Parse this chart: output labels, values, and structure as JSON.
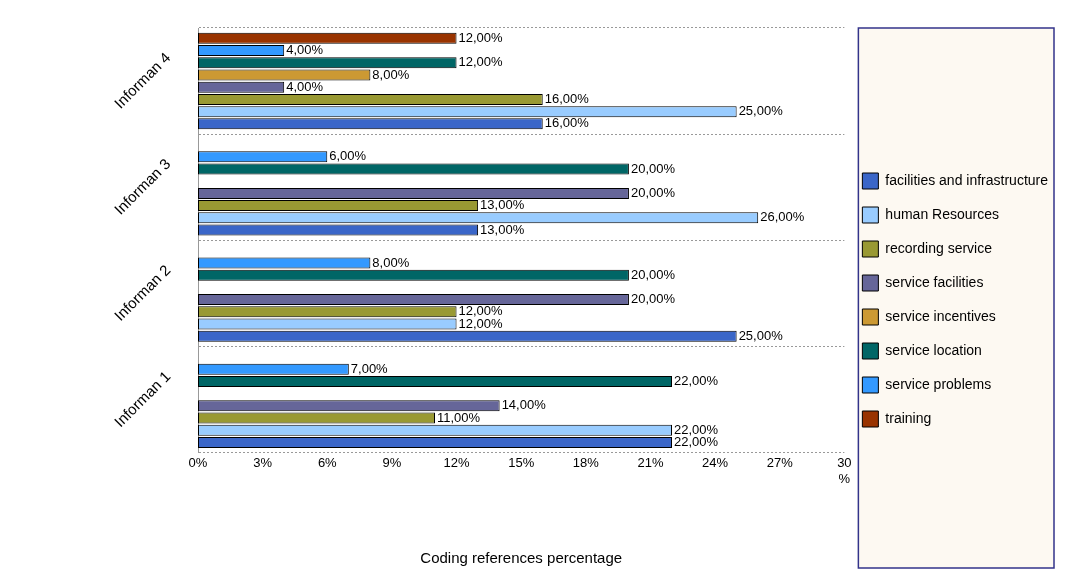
{
  "chart_data": {
    "type": "bar",
    "orientation": "horizontal",
    "xlabel": "Coding references percentage",
    "categories": [
      "Informan 4",
      "Informan 3",
      "Informan 2",
      "Informan 1"
    ],
    "series": [
      {
        "name": "facilities and infrastructure",
        "color": "#3a66c8",
        "values": [
          16,
          13,
          25,
          22
        ],
        "value_labels": [
          "16,00%",
          "13,00%",
          "25,00%",
          "22,00%"
        ]
      },
      {
        "name": "human Resources",
        "color": "#99ccff",
        "values": [
          25,
          26,
          12,
          22
        ],
        "value_labels": [
          "25,00%",
          "26,00%",
          "12,00%",
          "22,00%"
        ]
      },
      {
        "name": "recording service",
        "color": "#999933",
        "values": [
          16,
          13,
          12,
          11
        ],
        "value_labels": [
          "16,00%",
          "13,00%",
          "12,00%",
          "11,00%"
        ]
      },
      {
        "name": "service facilities",
        "color": "#666699",
        "values": [
          4,
          20,
          20,
          14
        ],
        "value_labels": [
          "4,00%",
          "20,00%",
          "20,00%",
          "14,00%"
        ]
      },
      {
        "name": "service incentives",
        "color": "#cc9933",
        "values": [
          8,
          null,
          null,
          null
        ],
        "value_labels": [
          "8,00%",
          null,
          null,
          null
        ]
      },
      {
        "name": "service location",
        "color": "#006666",
        "values": [
          12,
          20,
          20,
          22
        ],
        "value_labels": [
          "12,00%",
          "20,00%",
          "20,00%",
          "22,00%"
        ]
      },
      {
        "name": "service problems",
        "color": "#3399ff",
        "values": [
          4,
          6,
          8,
          7
        ],
        "value_labels": [
          "4,00%",
          "6,00%",
          "8,00%",
          "7,00%"
        ]
      },
      {
        "name": "training",
        "color": "#993300",
        "values": [
          12,
          null,
          null,
          null
        ],
        "value_labels": [
          "12,00%",
          null,
          null,
          null
        ]
      }
    ],
    "xlim": [
      0,
      30
    ],
    "xticks": [
      {
        "value": 0,
        "label": "0%"
      },
      {
        "value": 3,
        "label": "3%"
      },
      {
        "value": 6,
        "label": "6%"
      },
      {
        "value": 9,
        "label": "9%"
      },
      {
        "value": 12,
        "label": "12%"
      },
      {
        "value": 15,
        "label": "15%"
      },
      {
        "value": 18,
        "label": "18%"
      },
      {
        "value": 21,
        "label": "21%"
      },
      {
        "value": 24,
        "label": "24%"
      },
      {
        "value": 27,
        "label": "27%"
      },
      {
        "value": 30,
        "label": "30\n%"
      }
    ],
    "grid": "y",
    "legend": "right"
  }
}
